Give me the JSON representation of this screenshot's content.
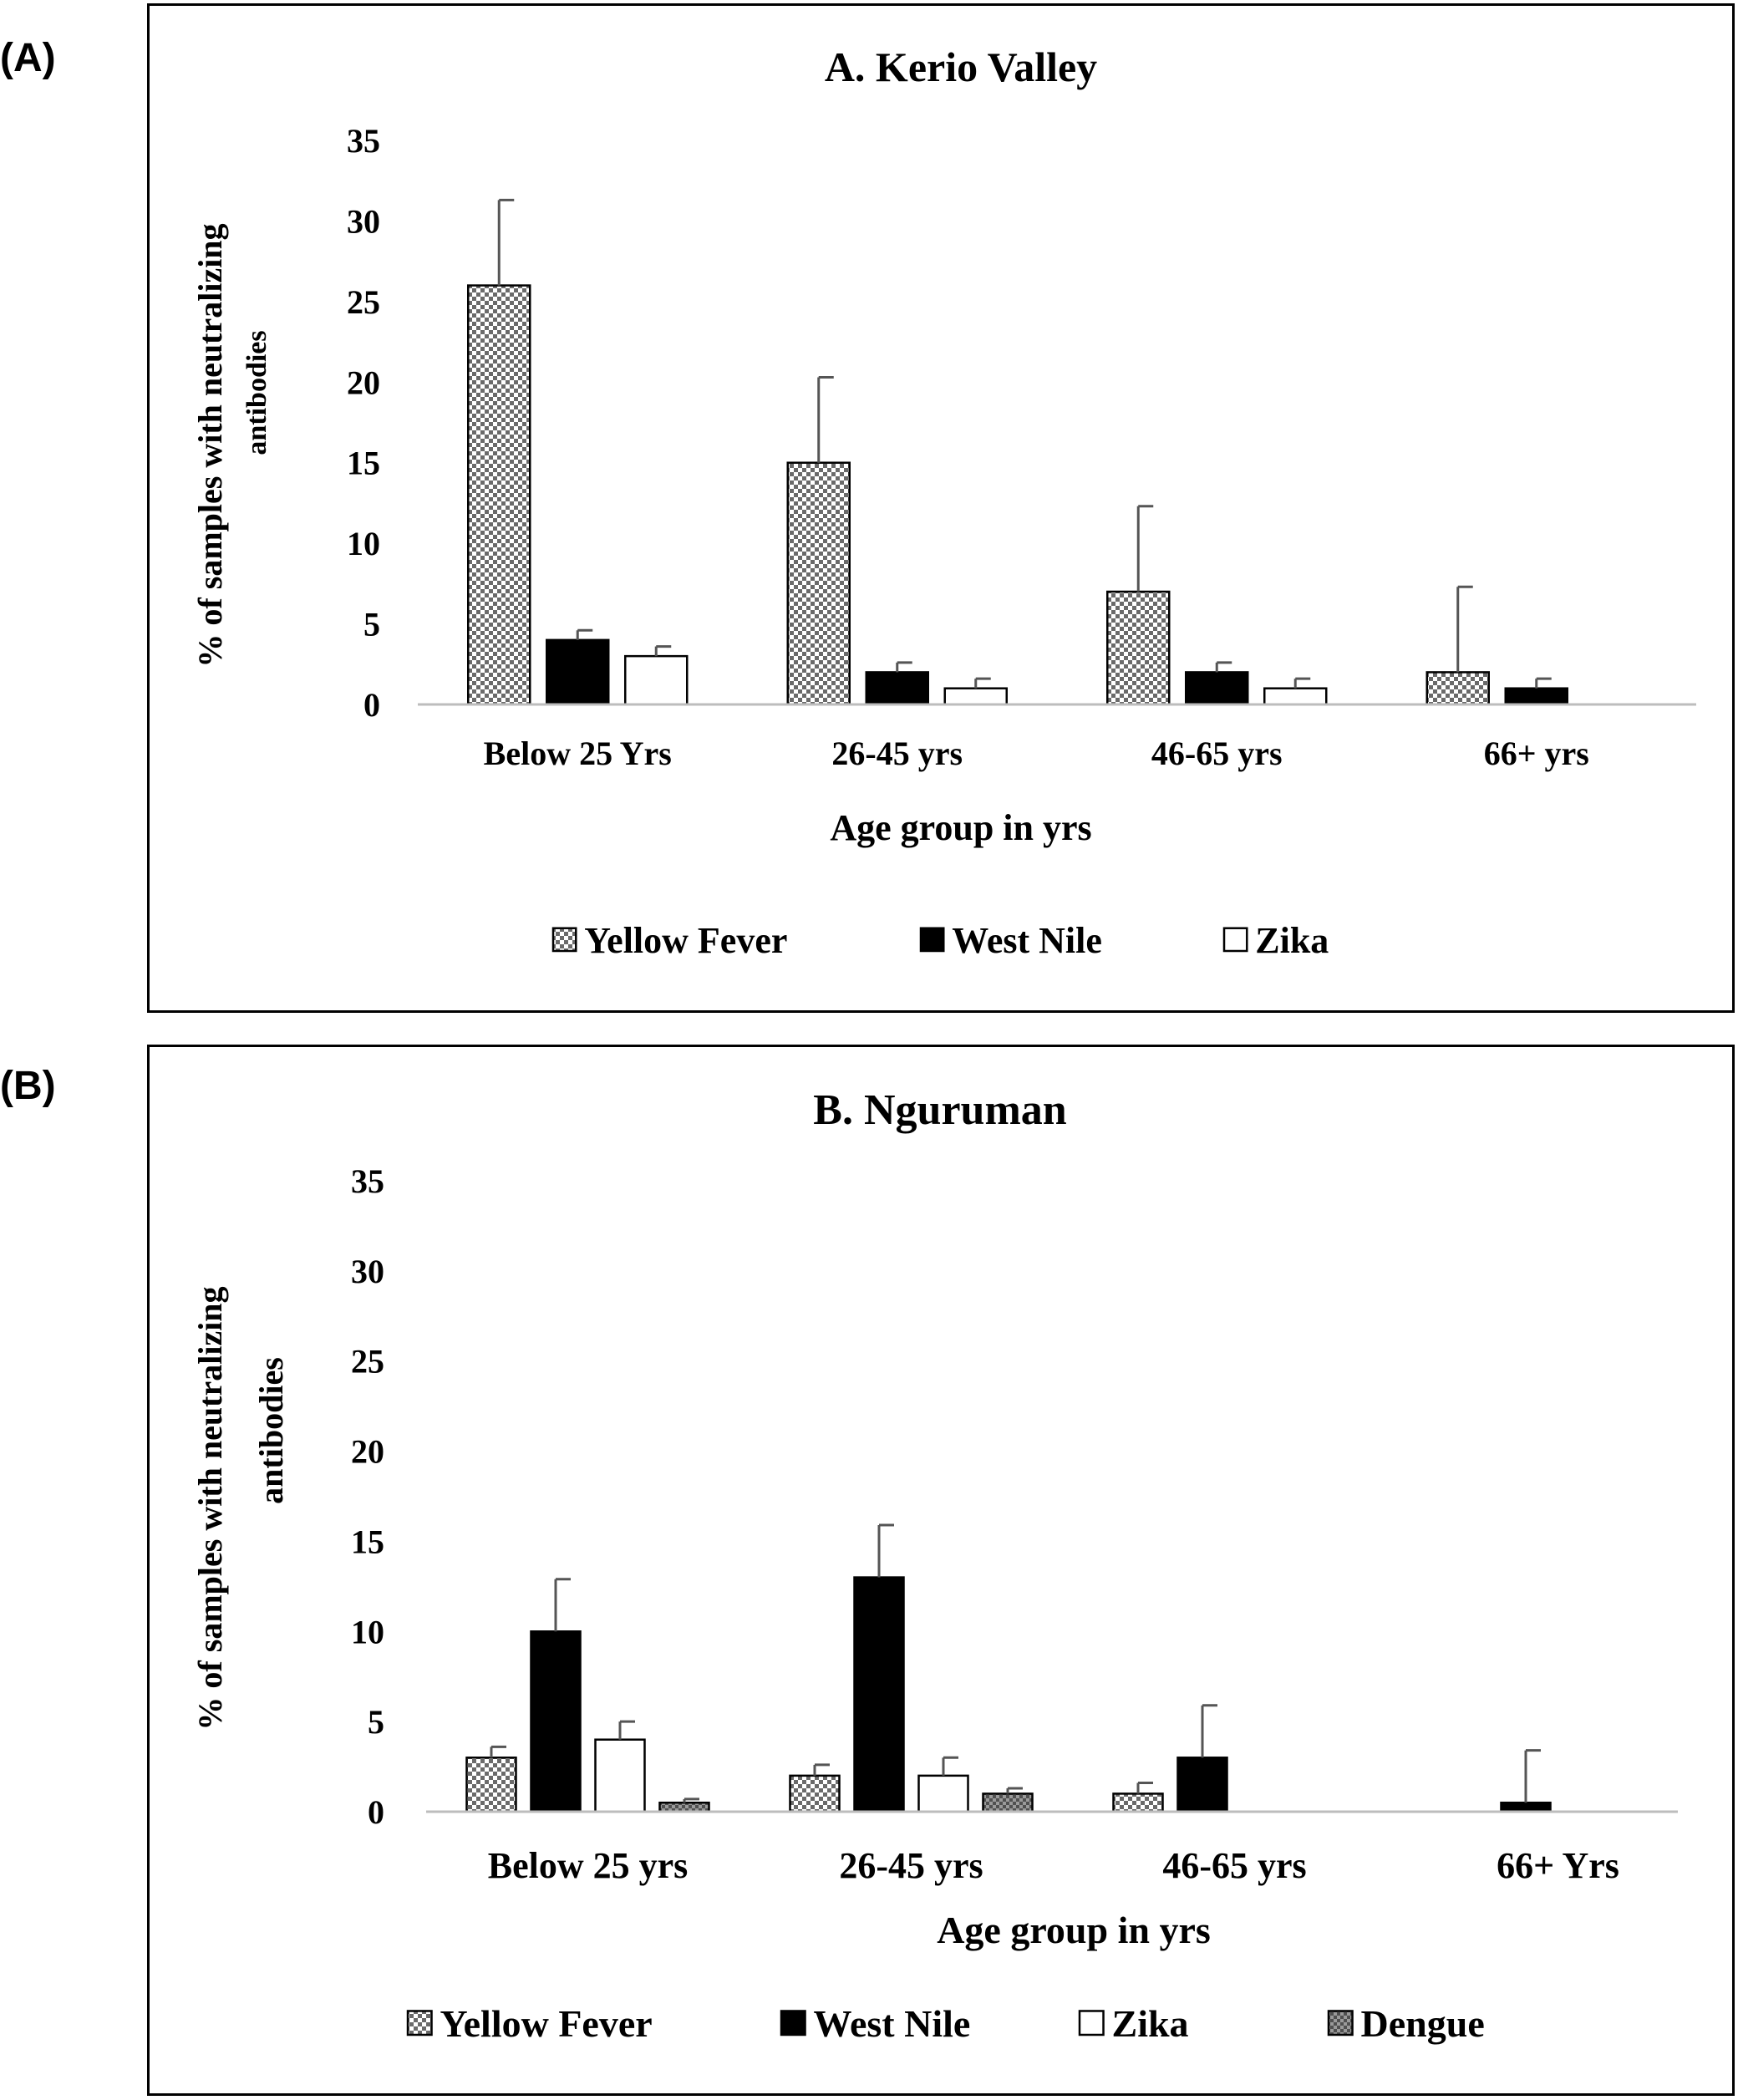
{
  "panel_labels": [
    "(A)",
    "(B)"
  ],
  "chart_data": [
    {
      "type": "bar",
      "title": "A. Kerio Valley",
      "xlabel": "Age group in yrs",
      "ylabel_line1": "% of samples with neutralizing",
      "ylabel_line2": "antibodies",
      "ylim": [
        0,
        35
      ],
      "yticks": [
        "0",
        "5",
        "10",
        "15",
        "20",
        "25",
        "30",
        "35"
      ],
      "categories": [
        "Below 25 Yrs",
        "26-45 yrs",
        "46-65 yrs",
        "66+ yrs"
      ],
      "series": [
        {
          "name": "Yellow Fever",
          "pattern": "checker",
          "values": [
            26,
            15,
            7,
            2
          ],
          "errors": [
            5.3,
            5.3,
            5.3,
            5.3
          ]
        },
        {
          "name": "West Nile",
          "pattern": "solid",
          "values": [
            4,
            2,
            2,
            1
          ],
          "errors": [
            0.6,
            0.6,
            0.6,
            0.6
          ]
        },
        {
          "name": "Zika",
          "pattern": "white",
          "values": [
            3,
            1,
            1,
            0
          ],
          "errors": [
            0.6,
            0.6,
            0.6,
            0
          ]
        }
      ]
    },
    {
      "type": "bar",
      "title": "B. Nguruman",
      "xlabel": "Age  group in yrs",
      "ylabel_line1": "% of samples with neutralizing",
      "ylabel_line2": "antibodies",
      "ylim": [
        0,
        35
      ],
      "yticks": [
        "0",
        "5",
        "10",
        "15",
        "20",
        "25",
        "30",
        "35"
      ],
      "categories": [
        "Below 25 yrs",
        "26-45 yrs",
        "46-65 yrs",
        "66+ Yrs"
      ],
      "series": [
        {
          "name": "Yellow Fever",
          "pattern": "checker",
          "values": [
            3,
            2,
            1,
            0
          ],
          "errors": [
            0.6,
            0.6,
            0.6,
            0
          ]
        },
        {
          "name": "West Nile",
          "pattern": "solid",
          "values": [
            10,
            13,
            3,
            0.5
          ],
          "errors": [
            2.9,
            2.9,
            2.9,
            2.9
          ]
        },
        {
          "name": "Zika",
          "pattern": "white",
          "values": [
            4,
            2,
            0,
            0
          ],
          "errors": [
            1,
            1,
            0,
            0
          ]
        },
        {
          "name": "Dengue",
          "pattern": "grey",
          "values": [
            0.5,
            1,
            0,
            0
          ],
          "errors": [
            0.2,
            0.3,
            0,
            0
          ]
        }
      ]
    }
  ]
}
